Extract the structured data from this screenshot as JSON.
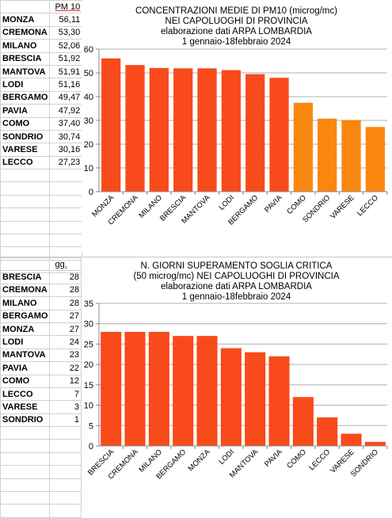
{
  "colors": {
    "bar_red": "#f94a1b",
    "bar_orange": "#f9860f",
    "grid": "#b0b0b0"
  },
  "table1": {
    "header": "PM 10",
    "rows": [
      {
        "city": "MONZA",
        "value": "56,11"
      },
      {
        "city": "CREMONA",
        "value": "53,30"
      },
      {
        "city": "MILANO",
        "value": "52,06"
      },
      {
        "city": "BRESCIA",
        "value": "51,92"
      },
      {
        "city": "MANTOVA",
        "value": "51,91"
      },
      {
        "city": "LODI",
        "value": "51,16"
      },
      {
        "city": "BERGAMO",
        "value": "49,47"
      },
      {
        "city": "PAVIA",
        "value": "47,92"
      },
      {
        "city": "COMO",
        "value": "37,40"
      },
      {
        "city": "SONDRIO",
        "value": "30,74"
      },
      {
        "city": "VARESE",
        "value": "30,16"
      },
      {
        "city": "LECCO",
        "value": "27,23"
      }
    ]
  },
  "table2": {
    "header": "gg.",
    "rows": [
      {
        "city": "BRESCIA",
        "value": "28"
      },
      {
        "city": "CREMONA",
        "value": "28"
      },
      {
        "city": "MILANO",
        "value": "28"
      },
      {
        "city": "BERGAMO",
        "value": "27"
      },
      {
        "city": "MONZA",
        "value": "27"
      },
      {
        "city": "LODI",
        "value": "24"
      },
      {
        "city": "MANTOVA",
        "value": "23"
      },
      {
        "city": "PAVIA",
        "value": "22"
      },
      {
        "city": "COMO",
        "value": "12"
      },
      {
        "city": "LECCO",
        "value": "7"
      },
      {
        "city": "VARESE",
        "value": "3"
      },
      {
        "city": "SONDRIO",
        "value": "1"
      }
    ]
  },
  "chart_data": [
    {
      "type": "bar",
      "title_lines": [
        "CONCENTRAZIONI MEDIE DI  PM10 (microg/mc)",
        "NEI CAPOLUOGHI DI PROVINCIA",
        "elaborazione dati ARPA LOMBARDIA",
        "1 gennaio-18febbraio 2024"
      ],
      "categories": [
        "MONZA",
        "CREMONA",
        "MILANO",
        "BRESCIA",
        "MANTOVA",
        "LODI",
        "BERGAMO",
        "PAVIA",
        "COMO",
        "SONDRIO",
        "VARESE",
        "LECCO"
      ],
      "values": [
        56.11,
        53.3,
        52.06,
        51.92,
        51.91,
        51.16,
        49.47,
        47.92,
        37.4,
        30.74,
        30.16,
        27.23
      ],
      "bar_colors": [
        "red",
        "red",
        "red",
        "red",
        "red",
        "red",
        "red",
        "red",
        "orange",
        "orange",
        "orange",
        "orange"
      ],
      "ylim": [
        0,
        60
      ],
      "yticks": [
        "0",
        "10",
        "20",
        "30",
        "40",
        "50",
        "60"
      ],
      "grid": true,
      "xlabel": "",
      "ylabel": ""
    },
    {
      "type": "bar",
      "title_lines": [
        "N. GIORNI SUPERAMENTO SOGLIA CRITICA",
        "(50 microg/mc) NEI CAPOLUOGHI DI PROVINCIA",
        "elaborazione dati ARPA LOMBARDIA",
        "1 gennaio-18febbraio 2024"
      ],
      "categories": [
        "BRESCIA",
        "CREMONA",
        "MILANO",
        "BERGAMO",
        "MONZA",
        "LODI",
        "MANTOVA",
        "PAVIA",
        "COMO",
        "LECCO",
        "VARESE",
        "SONDRIO"
      ],
      "values": [
        28,
        28,
        28,
        27,
        27,
        24,
        23,
        22,
        12,
        7,
        3,
        1
      ],
      "bar_colors": [
        "red",
        "red",
        "red",
        "red",
        "red",
        "red",
        "red",
        "red",
        "red",
        "red",
        "red",
        "red"
      ],
      "ylim": [
        0,
        35
      ],
      "yticks": [
        "0",
        "5",
        "10",
        "15",
        "20",
        "25",
        "30",
        "35"
      ],
      "grid": true,
      "xlabel": "",
      "ylabel": ""
    }
  ]
}
